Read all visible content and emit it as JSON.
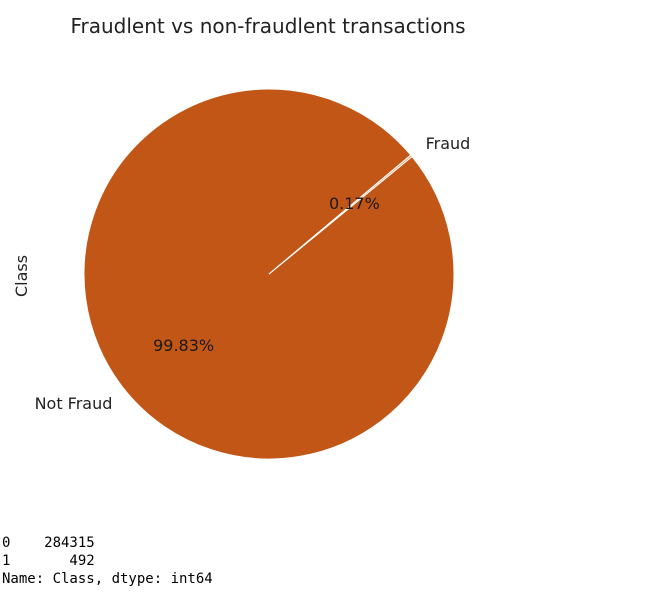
{
  "chart_data": {
    "type": "pie",
    "title": "Fraudlent vs non-fraudlent transactions",
    "ylabel": "Class",
    "slices": [
      {
        "label": "Not Fraud",
        "value": 99.83,
        "pct_label": "99.83%",
        "color": "#c25617"
      },
      {
        "label": "Fraud",
        "value": 0.17,
        "pct_label": "0.17%",
        "color": "#f2a06b"
      }
    ],
    "edge_color": "#ffffff"
  },
  "console": {
    "lines": [
      "0    284315",
      "1       492",
      "Name: Class, dtype: int64"
    ]
  }
}
